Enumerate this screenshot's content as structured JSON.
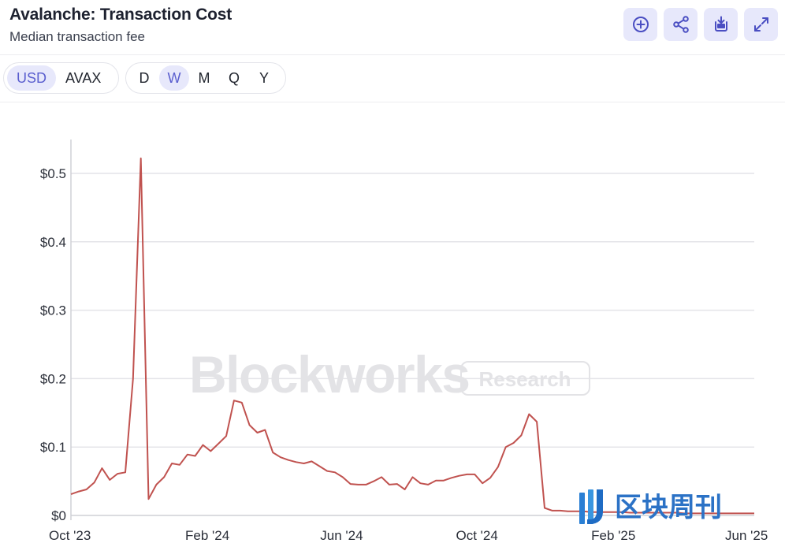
{
  "header": {
    "title": "Avalanche: Transaction Cost",
    "subtitle": "Median transaction fee",
    "actions": [
      {
        "name": "add-button",
        "icon": "plus-circle-icon"
      },
      {
        "name": "share-button",
        "icon": "share-icon"
      },
      {
        "name": "download-button",
        "icon": "download-icon"
      },
      {
        "name": "expand-button",
        "icon": "expand-icon"
      }
    ]
  },
  "toolbar": {
    "currency_options": [
      "USD",
      "AVAX"
    ],
    "currency_selected": "USD",
    "period_options": [
      "D",
      "W",
      "M",
      "Q",
      "Y"
    ],
    "period_selected": "W"
  },
  "watermark": {
    "brand": "Blockworks",
    "tag": "Research",
    "stamp": "区块周刊"
  },
  "colors": {
    "accent": "#5b5fcf",
    "accent_bg": "#e7e8fb",
    "line": "#c0524f",
    "grid": "#e4e4e8"
  },
  "chart_data": {
    "type": "line",
    "title": "Avalanche: Transaction Cost",
    "subtitle": "Median transaction fee",
    "xlabel": "",
    "ylabel": "",
    "xlim": [
      "2023-10-01",
      "2025-06-08"
    ],
    "ylim": [
      0,
      0.55
    ],
    "x_ticks": [
      {
        "date": "2023-10-01",
        "label": "Oct '23"
      },
      {
        "date": "2024-02-01",
        "label": "Feb '24"
      },
      {
        "date": "2024-06-01",
        "label": "Jun '24"
      },
      {
        "date": "2024-10-01",
        "label": "Oct '24"
      },
      {
        "date": "2025-02-01",
        "label": "Feb '25"
      },
      {
        "date": "2025-06-01",
        "label": "Jun '25"
      }
    ],
    "y_ticks": [
      {
        "value": 0,
        "label": "$0"
      },
      {
        "value": 0.1,
        "label": "$0.1"
      },
      {
        "value": 0.2,
        "label": "$0.2"
      },
      {
        "value": 0.3,
        "label": "$0.3"
      },
      {
        "value": 0.4,
        "label": "$0.4"
      },
      {
        "value": 0.5,
        "label": "$0.5"
      }
    ],
    "grid": true,
    "series": [
      {
        "color": "#c0524f",
        "points": [
          [
            "2023-10-01",
            0.031
          ],
          [
            "2023-10-08",
            0.035
          ],
          [
            "2023-10-15",
            0.038
          ],
          [
            "2023-10-22",
            0.048
          ],
          [
            "2023-10-29",
            0.069
          ],
          [
            "2023-11-05",
            0.052
          ],
          [
            "2023-11-12",
            0.061
          ],
          [
            "2023-11-19",
            0.063
          ],
          [
            "2023-11-26",
            0.2
          ],
          [
            "2023-12-03",
            0.522
          ],
          [
            "2023-12-10",
            0.024
          ],
          [
            "2023-12-17",
            0.045
          ],
          [
            "2023-12-24",
            0.056
          ],
          [
            "2023-12-31",
            0.076
          ],
          [
            "2024-01-07",
            0.074
          ],
          [
            "2024-01-14",
            0.089
          ],
          [
            "2024-01-21",
            0.087
          ],
          [
            "2024-01-28",
            0.103
          ],
          [
            "2024-02-04",
            0.094
          ],
          [
            "2024-02-11",
            0.105
          ],
          [
            "2024-02-18",
            0.116
          ],
          [
            "2024-02-25",
            0.168
          ],
          [
            "2024-03-03",
            0.165
          ],
          [
            "2024-03-10",
            0.132
          ],
          [
            "2024-03-17",
            0.121
          ],
          [
            "2024-03-24",
            0.125
          ],
          [
            "2024-03-31",
            0.092
          ],
          [
            "2024-04-07",
            0.085
          ],
          [
            "2024-04-14",
            0.081
          ],
          [
            "2024-04-21",
            0.078
          ],
          [
            "2024-04-28",
            0.076
          ],
          [
            "2024-05-05",
            0.079
          ],
          [
            "2024-05-12",
            0.072
          ],
          [
            "2024-05-19",
            0.065
          ],
          [
            "2024-05-26",
            0.063
          ],
          [
            "2024-06-02",
            0.056
          ],
          [
            "2024-06-09",
            0.046
          ],
          [
            "2024-06-16",
            0.045
          ],
          [
            "2024-06-23",
            0.045
          ],
          [
            "2024-06-30",
            0.05
          ],
          [
            "2024-07-07",
            0.056
          ],
          [
            "2024-07-14",
            0.045
          ],
          [
            "2024-07-21",
            0.046
          ],
          [
            "2024-07-28",
            0.038
          ],
          [
            "2024-08-04",
            0.056
          ],
          [
            "2024-08-11",
            0.047
          ],
          [
            "2024-08-18",
            0.045
          ],
          [
            "2024-08-25",
            0.051
          ],
          [
            "2024-09-01",
            0.051
          ],
          [
            "2024-09-08",
            0.055
          ],
          [
            "2024-09-15",
            0.058
          ],
          [
            "2024-09-22",
            0.06
          ],
          [
            "2024-09-29",
            0.06
          ],
          [
            "2024-10-06",
            0.047
          ],
          [
            "2024-10-13",
            0.055
          ],
          [
            "2024-10-20",
            0.071
          ],
          [
            "2024-10-27",
            0.1
          ],
          [
            "2024-11-03",
            0.106
          ],
          [
            "2024-11-10",
            0.117
          ],
          [
            "2024-11-17",
            0.148
          ],
          [
            "2024-11-24",
            0.137
          ],
          [
            "2024-12-01",
            0.011
          ],
          [
            "2024-12-08",
            0.007
          ],
          [
            "2024-12-15",
            0.007
          ],
          [
            "2024-12-22",
            0.006
          ],
          [
            "2024-12-29",
            0.006
          ],
          [
            "2025-01-05",
            0.006
          ],
          [
            "2025-01-12",
            0.005
          ],
          [
            "2025-01-19",
            0.005
          ],
          [
            "2025-01-26",
            0.005
          ],
          [
            "2025-02-02",
            0.005
          ],
          [
            "2025-02-09",
            0.005
          ],
          [
            "2025-02-16",
            0.004
          ],
          [
            "2025-02-23",
            0.004
          ],
          [
            "2025-03-02",
            0.004
          ],
          [
            "2025-03-09",
            0.004
          ],
          [
            "2025-03-16",
            0.004
          ],
          [
            "2025-03-23",
            0.004
          ],
          [
            "2025-03-30",
            0.004
          ],
          [
            "2025-04-06",
            0.003
          ],
          [
            "2025-04-13",
            0.003
          ],
          [
            "2025-04-20",
            0.003
          ],
          [
            "2025-04-27",
            0.003
          ],
          [
            "2025-05-04",
            0.003
          ],
          [
            "2025-05-11",
            0.003
          ],
          [
            "2025-05-18",
            0.003
          ],
          [
            "2025-05-25",
            0.003
          ],
          [
            "2025-06-01",
            0.003
          ],
          [
            "2025-06-08",
            0.003
          ]
        ]
      }
    ]
  }
}
